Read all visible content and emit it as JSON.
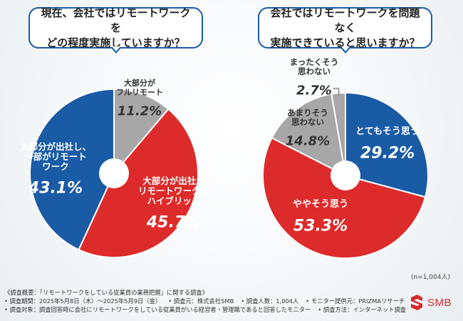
{
  "sample_size": "(n=1,004人)",
  "footer": {
    "title": "《調査概要：「リモートワークをしている従業員の業務把握」に関する調査》",
    "period": "• 調査期間：2025年5月8日（木）～2025年5月9日（金）",
    "organizer": "• 調査元：株式会社SMB",
    "respondents": "• 調査人数：1,004人",
    "monitor": "• モニター提供元：PRIZMAリサーチ",
    "target": "• 調査対象：調査回答時に会社にリモートワークをしている従業員がいる経営者・管理職であると回答したモニター",
    "method": "• 調査方法：インターネット調査"
  },
  "logo": {
    "text": "SMB",
    "color": "#d42a2a"
  },
  "colors": {
    "blue": "#1a5ba6",
    "red": "#dd2a2a",
    "gray": "#a7a7a7"
  },
  "chart_data": [
    {
      "type": "pie",
      "title": "現在、会社ではリモートワークを\nどの程度実施していますか？",
      "slices": [
        {
          "label": "大部分が\nフルリモート",
          "value": 11.2,
          "value_text": "11.2%",
          "color": "#a7a7a7"
        },
        {
          "label": "大部分が出社と\nリモートワークの\nハイブリッド",
          "value": 45.7,
          "value_text": "45.7%",
          "color": "#dd2a2a"
        },
        {
          "label": "大部分が出社し、\n一部がリモート\nワーク",
          "value": 43.1,
          "value_text": "43.1%",
          "color": "#1a5ba6"
        }
      ]
    },
    {
      "type": "pie",
      "title": "会社ではリモートワークを問題なく\n実施できていると思いますか？",
      "slices": [
        {
          "label": "とてもそう思う",
          "value": 29.2,
          "value_text": "29.2%",
          "color": "#1a5ba6"
        },
        {
          "label": "ややそう思う",
          "value": 53.3,
          "value_text": "53.3%",
          "color": "#dd2a2a"
        },
        {
          "label": "あまりそう\n思わない",
          "value": 14.8,
          "value_text": "14.8%",
          "color": "#a7a7a7"
        },
        {
          "label": "まったくそう\n思わない",
          "value": 2.7,
          "value_text": "2.7%",
          "color": "#a7a7a7"
        }
      ]
    }
  ]
}
